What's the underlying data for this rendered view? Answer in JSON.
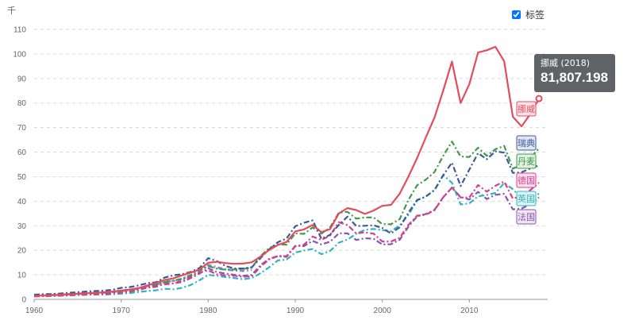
{
  "unit_label": "千",
  "legend_toggle": {
    "label": "标签",
    "checked": true
  },
  "tooltip": {
    "country": "挪威",
    "year": "2018",
    "value": "81,807.198"
  },
  "colors": {
    "挪威": "#e34c5c",
    "瑞典": "#3a5a98",
    "丹麦": "#3f9a4a",
    "德国": "#d93d8c",
    "英国": "#2fb5bf",
    "法国": "#8b54b0",
    "other": "#7a7fc0"
  },
  "chart_data": {
    "type": "line",
    "xlim": [
      1960,
      2019
    ],
    "ylim": [
      0,
      110
    ],
    "x_ticks": [
      "1960",
      "1970",
      "1980",
      "1990",
      "2000",
      "2010"
    ],
    "y_ticks": [
      "0",
      "10",
      "20",
      "30",
      "40",
      "50",
      "60",
      "70",
      "80",
      "90",
      "100",
      "110"
    ],
    "grid": true,
    "x": [
      1960,
      1961,
      1962,
      1963,
      1964,
      1965,
      1966,
      1967,
      1968,
      1969,
      1970,
      1971,
      1972,
      1973,
      1974,
      1975,
      1976,
      1977,
      1978,
      1979,
      1980,
      1981,
      1982,
      1983,
      1984,
      1985,
      1986,
      1987,
      1988,
      1989,
      1990,
      1991,
      1992,
      1993,
      1994,
      1995,
      1996,
      1997,
      1998,
      1999,
      2000,
      2001,
      2002,
      2003,
      2004,
      2005,
      2006,
      2007,
      2008,
      2009,
      2010,
      2011,
      2012,
      2013,
      2014,
      2015,
      2016,
      2017,
      2018
    ],
    "series": [
      {
        "name": "挪威",
        "values": [
          1.4,
          1.6,
          1.7,
          1.9,
          2.1,
          2.3,
          2.5,
          2.7,
          2.9,
          3.2,
          3.6,
          4.0,
          4.6,
          5.7,
          6.8,
          7.9,
          8.6,
          9.8,
          10.9,
          12.2,
          14.9,
          15.3,
          14.8,
          14.5,
          14.6,
          15.1,
          17.4,
          20.1,
          22.2,
          23.4,
          27.7,
          28.5,
          30.3,
          27.4,
          28.6,
          35.0,
          37.2,
          36.4,
          34.8,
          36.2,
          38.1,
          38.5,
          43.1,
          50.0,
          57.6,
          66.0,
          74.1,
          85.1,
          96.9,
          80.0,
          87.7,
          100.6,
          101.5,
          102.9,
          97.0,
          74.4,
          70.5,
          75.5,
          81.8
        ]
      },
      {
        "name": "瑞典",
        "values": [
          1.9,
          2.1,
          2.2,
          2.4,
          2.7,
          2.9,
          3.2,
          3.4,
          3.6,
          3.9,
          4.7,
          5.0,
          5.7,
          6.6,
          7.0,
          8.9,
          9.8,
          10.3,
          11.2,
          12.8,
          16.8,
          15.6,
          13.6,
          12.6,
          12.6,
          13.1,
          16.8,
          20.4,
          23.3,
          24.8,
          29.8,
          31.2,
          32.2,
          24.7,
          26.3,
          30.3,
          33.7,
          29.9,
          30.0,
          30.2,
          29.1,
          26.9,
          29.4,
          35.3,
          40.5,
          41.9,
          44.5,
          50.6,
          55.7,
          46.2,
          52.9,
          59.6,
          57.1,
          60.3,
          59.8,
          51.5,
          51.8,
          53.3,
          54.6
        ]
      },
      {
        "name": "丹麦",
        "values": [
          1.4,
          1.5,
          1.7,
          1.8,
          2.0,
          2.2,
          2.4,
          2.6,
          2.8,
          3.1,
          3.4,
          3.8,
          4.4,
          5.6,
          6.2,
          7.1,
          7.6,
          8.4,
          9.9,
          11.8,
          13.6,
          12.5,
          12.1,
          12.2,
          12.4,
          13.0,
          17.6,
          20.9,
          22.4,
          22.3,
          26.9,
          26.7,
          29.3,
          26.8,
          29.3,
          35.3,
          35.7,
          32.9,
          33.4,
          33.4,
          30.7,
          30.6,
          32.7,
          40.5,
          46.5,
          48.8,
          51.9,
          58.5,
          64.3,
          58.2,
          58.0,
          61.8,
          58.5,
          61.2,
          62.5,
          53.3,
          54.7,
          57.6,
          61.6
        ]
      },
      {
        "name": "德国",
        "values": [
          1.2,
          1.3,
          1.4,
          1.5,
          1.6,
          1.8,
          1.9,
          2.0,
          2.2,
          2.5,
          2.8,
          3.2,
          3.8,
          5.0,
          5.6,
          6.1,
          6.5,
          7.6,
          9.2,
          10.9,
          11.8,
          10.2,
          9.8,
          9.6,
          9.2,
          9.4,
          13.3,
          16.3,
          17.6,
          17.3,
          21.6,
          22.3,
          25.6,
          24.2,
          26.0,
          31.4,
          30.3,
          26.9,
          27.3,
          26.8,
          23.6,
          23.6,
          25.1,
          30.3,
          34.1,
          34.5,
          36.3,
          41.6,
          45.6,
          41.5,
          41.5,
          46.6,
          43.9,
          46.3,
          48.0,
          41.1,
          42.1,
          44.5,
          47.6
        ]
      },
      {
        "name": "英国",
        "values": [
          1.4,
          1.5,
          1.5,
          1.6,
          1.7,
          1.8,
          1.9,
          2.0,
          1.9,
          2.1,
          2.3,
          2.6,
          3.0,
          3.4,
          3.7,
          4.3,
          4.1,
          4.7,
          5.9,
          7.8,
          10.0,
          9.6,
          9.1,
          8.7,
          8.2,
          8.7,
          10.6,
          13.1,
          15.9,
          16.2,
          19.1,
          19.9,
          20.5,
          18.4,
          19.7,
          23.1,
          24.4,
          26.7,
          28.3,
          28.7,
          28.2,
          27.8,
          30.1,
          34.4,
          40.3,
          41.9,
          44.6,
          50.6,
          47.5,
          38.7,
          39.1,
          42.0,
          42.5,
          43.4,
          47.4,
          44.9,
          41.1,
          40.6,
          43.1
        ]
      },
      {
        "name": "法国",
        "values": [
          1.3,
          1.4,
          1.5,
          1.6,
          1.8,
          1.9,
          2.0,
          2.2,
          2.4,
          2.6,
          2.9,
          3.2,
          3.8,
          4.8,
          5.1,
          6.4,
          6.5,
          7.1,
          8.7,
          10.5,
          12.7,
          11.1,
          10.5,
          10.0,
          9.6,
          10.0,
          13.9,
          16.5,
          17.7,
          17.6,
          21.8,
          21.7,
          23.8,
          22.4,
          23.5,
          26.9,
          26.9,
          24.2,
          24.9,
          24.7,
          22.4,
          22.5,
          24.3,
          29.6,
          33.8,
          34.8,
          36.5,
          41.6,
          45.5,
          41.7,
          40.7,
          43.8,
          40.9,
          42.6,
          43.0,
          36.7,
          37.0,
          38.8,
          41.6
        ]
      }
    ],
    "end_labels": [
      "挪威",
      "瑞典",
      "丹麦",
      "德国",
      "英国",
      "法国"
    ]
  }
}
